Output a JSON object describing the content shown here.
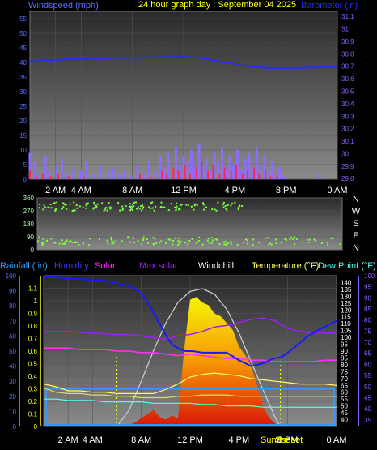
{
  "colors": {
    "windspeed": "#5a6cff",
    "barometer": "#2a2aff",
    "gust": "#8e6cff",
    "wind_avg": "#ff2a4a",
    "humidity": "#1a1aff",
    "solar": "#ff30ff",
    "max_solar": "#a020f0",
    "windchill": "#ffffff",
    "temperature": "#ffff66",
    "dew_point": "#55ffee",
    "rainfall": "#3399ff",
    "left_axis": "#5a6cff",
    "right_axis": "#8a5cff",
    "title": "#ffff00"
  },
  "chart_data": [
    {
      "type": "line",
      "title": "24 hour graph day : September 04 2025",
      "legend_left": "Windspeed (mph)",
      "legend_right": "Barometer (in)",
      "x_ticks": [
        "2 AM",
        "4 AM",
        "8 AM",
        "12 PM",
        "4 PM",
        "8 PM",
        "0 AM"
      ],
      "x_tick_hours": [
        2,
        4,
        8,
        12,
        16,
        20,
        24
      ],
      "xlim": [
        0,
        24
      ],
      "y_left_ticks": [
        "0",
        "5",
        "10",
        "15",
        "20",
        "25",
        "30",
        "35",
        "40",
        "45",
        "50",
        "55"
      ],
      "y_left_lim": [
        0,
        57.5
      ],
      "y_right_ticks": [
        "29.8",
        "29.9",
        "30",
        "30.1",
        "30.2",
        "30.3",
        "30.4",
        "30.5",
        "30.6",
        "30.7",
        "30.8",
        "30.9",
        "31",
        "31.1"
      ],
      "y_right_lim": [
        29.795,
        31.14
      ],
      "series": [
        {
          "name": "Barometer",
          "axis": "right",
          "x": [
            0,
            0.5,
            1,
            2,
            3,
            4,
            5,
            6,
            7,
            8,
            9,
            10,
            11,
            12,
            13,
            14,
            15,
            16,
            17,
            18,
            19,
            20,
            21,
            22,
            23,
            24
          ],
          "y": [
            30.74,
            30.74,
            30.745,
            30.752,
            30.756,
            30.758,
            30.76,
            30.763,
            30.766,
            30.768,
            30.77,
            30.772,
            30.775,
            30.776,
            30.77,
            30.755,
            30.735,
            30.72,
            30.7,
            30.69,
            30.685,
            30.685,
            30.688,
            30.69,
            30.693,
            30.692
          ]
        },
        {
          "name": "Windspeed",
          "axis": "left",
          "x": [
            0,
            0.35,
            0.7,
            1.2,
            1.5,
            2.1,
            2.5,
            2.9,
            3.4,
            4.0,
            4.4,
            5.0,
            5.5,
            6.1,
            6.5,
            7.0,
            7.4,
            7.9,
            8.4,
            8.9,
            9.3,
            9.8,
            10.2,
            10.5,
            10.8,
            11.1,
            11.4,
            11.7,
            12.0,
            12.3,
            12.6,
            12.9,
            13.2,
            13.5,
            13.8,
            14.1,
            14.4,
            14.7,
            15.0,
            15.3,
            15.6,
            15.9,
            16.2,
            16.5,
            16.8,
            17.1,
            17.4,
            17.7,
            18.0,
            18.3,
            18.6,
            18.9,
            19.2,
            19.5,
            19.8,
            22.6
          ],
          "y": [
            9,
            6,
            2,
            8,
            3,
            5,
            7,
            2,
            4,
            3,
            6,
            2,
            5,
            3,
            4,
            2,
            3,
            1,
            5,
            2,
            6,
            3,
            8,
            4,
            9,
            3,
            11,
            5,
            8,
            6,
            10,
            4,
            12,
            5,
            7,
            3,
            9,
            6,
            11,
            4,
            8,
            5,
            10,
            3,
            7,
            9,
            4,
            11,
            5,
            8,
            3,
            6,
            2,
            4,
            1,
            2
          ]
        },
        {
          "name": "Wind average",
          "axis": "left",
          "x": [
            0,
            0.5,
            1.0,
            1.6,
            2.2,
            3.0,
            4.2,
            8.6,
            9.4,
            10.3,
            10.7,
            11.2,
            11.6,
            12.1,
            12.5,
            13.0,
            13.4,
            13.9,
            14.3,
            14.8,
            15.2,
            15.7,
            16.1,
            16.6,
            17.0,
            17.5,
            17.9,
            18.4,
            18.8,
            19.3
          ],
          "y": [
            3,
            1,
            2,
            1,
            2,
            1,
            1,
            2,
            1,
            3,
            2,
            4,
            3,
            5,
            2,
            4,
            6,
            3,
            5,
            2,
            4,
            3,
            5,
            2,
            3,
            4,
            2,
            3,
            1,
            2
          ]
        }
      ]
    },
    {
      "type": "scatter",
      "title": "Wind direction",
      "y_labels": [
        "360",
        "270",
        "180",
        "90",
        "0"
      ],
      "y_lim": [
        0,
        360
      ],
      "compass": [
        "N",
        "W",
        "S",
        "E",
        "N"
      ],
      "xlim": [
        0,
        24
      ],
      "clusters": [
        {
          "x_from": 0,
          "x_to": 16.5,
          "y_center": 300,
          "spread": 30
        },
        {
          "x_from": 0,
          "x_to": 24,
          "y_center": 60,
          "spread": 28
        }
      ]
    },
    {
      "type": "line",
      "legend": [
        "Rainfall (.in)",
        "Humidity",
        "Solar",
        "Max solar",
        "Windchill",
        "Temperature (°F)",
        "Dew Point (°F)"
      ],
      "sun_labels": [
        "Sunrise",
        "Sunset"
      ],
      "x_ticks": [
        "2 AM",
        "4 AM",
        "8 AM",
        "12 PM",
        "4 PM",
        "8 PM",
        "0 AM"
      ],
      "x_tick_hours": [
        2,
        4,
        8,
        12,
        16,
        20,
        24
      ],
      "xlim": [
        0,
        24
      ],
      "y_rain_ticks": [
        "0",
        "0.1",
        "0.2",
        "0.3",
        "0.4",
        "0.5",
        "0.6",
        "0.7",
        "0.8",
        "0.9",
        "1",
        "1.1"
      ],
      "y_rain_lim": [
        0,
        1.2
      ],
      "y_pct_ticks": [
        "0",
        "10",
        "20",
        "30",
        "40",
        "50",
        "60",
        "70",
        "80",
        "90",
        "100"
      ],
      "y_pct_lim": [
        0,
        100
      ],
      "y_temp_ticks": [
        "40",
        "45",
        "50",
        "55",
        "60",
        "65",
        "70",
        "75",
        "80",
        "85",
        "90",
        "95",
        "100",
        "105",
        "110",
        "115",
        "120",
        "125",
        "130",
        "135",
        "140"
      ],
      "y_temp_lim": [
        35,
        145
      ],
      "y_dew_ticks": [
        "35",
        "40",
        "45",
        "50",
        "55",
        "60",
        "65",
        "70",
        "75",
        "80",
        "85",
        "90",
        "95",
        "100"
      ],
      "y_dew_lim": [
        32,
        100
      ],
      "sunrise_hour": 6.0,
      "sunset_hour": 19.4,
      "series": [
        {
          "name": "Humidity",
          "unit": "%",
          "x": [
            0,
            1,
            2,
            3,
            4,
            5,
            6,
            7,
            7.8,
            8.5,
            9.5,
            10.2,
            10.6,
            11.0,
            11.6,
            12.2,
            13.0,
            14.0,
            15.0,
            16.0,
            17.0,
            18.0,
            18.8,
            19.5,
            20.5,
            21.5,
            22.5,
            23.5,
            24
          ],
          "y": [
            99,
            99,
            98,
            98,
            97,
            97,
            95,
            93,
            90,
            83,
            68,
            58,
            54,
            52,
            50,
            50,
            49,
            49,
            49,
            44,
            40,
            42,
            45,
            46,
            52,
            59,
            64,
            68,
            70
          ]
        },
        {
          "name": "Max solar",
          "unit": "%",
          "x": [
            0,
            2,
            4,
            6,
            7,
            8,
            9,
            10,
            11,
            12,
            13,
            14,
            15,
            16,
            17,
            18,
            19,
            20,
            21,
            22,
            23,
            24
          ],
          "y": [
            63,
            63,
            62,
            61,
            61,
            60,
            59,
            58,
            60,
            61,
            63,
            66,
            67,
            69,
            71,
            72,
            70,
            65,
            63,
            62,
            62,
            62
          ]
        },
        {
          "name": "Solar",
          "unit": "%",
          "x": [
            0,
            1,
            2,
            3,
            4,
            5,
            6,
            7,
            8,
            9,
            10,
            11,
            12,
            13,
            14,
            15,
            16,
            17,
            18,
            19,
            20,
            21,
            22,
            23,
            24
          ],
          "y": [
            52,
            52,
            52,
            51,
            51,
            51,
            50,
            50,
            49,
            49,
            48,
            47,
            48,
            47,
            46,
            45,
            45,
            44,
            44,
            43,
            43,
            43,
            43,
            44,
            44
          ]
        },
        {
          "name": "Temperature",
          "unit": "°F",
          "x": [
            0,
            1,
            2,
            3,
            4,
            5,
            6,
            7,
            8,
            9,
            10,
            11,
            12,
            13,
            14,
            15,
            16,
            17,
            18,
            19,
            20,
            21,
            22,
            23,
            24
          ],
          "y": [
            66,
            64,
            61,
            61,
            60,
            60,
            59,
            59,
            59,
            59,
            62,
            66,
            71,
            73,
            74,
            73,
            72,
            70,
            69,
            68,
            67,
            66,
            66,
            66,
            65
          ]
        },
        {
          "name": "Windchill",
          "unit": "°F",
          "x": [
            0,
            1,
            2,
            3,
            4,
            5,
            6,
            7,
            8,
            9,
            10,
            11,
            12,
            13,
            14,
            15,
            16,
            17,
            18,
            19,
            20,
            21,
            22,
            23,
            24
          ],
          "y": [
            63,
            60,
            59,
            59,
            58,
            58,
            57,
            57,
            56,
            56,
            56,
            57,
            57,
            58,
            58,
            58,
            57,
            57,
            57,
            57,
            57,
            57,
            57,
            57,
            57
          ]
        },
        {
          "name": "Dew Point",
          "unit": "°F",
          "x": [
            0,
            1,
            2,
            3,
            4,
            5,
            6,
            7,
            8,
            9,
            10,
            11,
            12,
            13,
            14,
            15,
            16,
            17,
            18,
            19,
            20,
            21,
            22,
            23,
            24
          ],
          "y": [
            55,
            55,
            54,
            54,
            54,
            53,
            53,
            53,
            53,
            52,
            52,
            52,
            52,
            51,
            51,
            50,
            50,
            50,
            49,
            49,
            49,
            49,
            49,
            49,
            49
          ]
        },
        {
          "name": "Max solar curve",
          "unit": "relative",
          "x": [
            6.0,
            7,
            8,
            9,
            10,
            11,
            12,
            13,
            14,
            15,
            16,
            17,
            18,
            19,
            19.4
          ],
          "y": [
            0,
            0.12,
            0.33,
            0.55,
            0.75,
            0.9,
            0.98,
            1.0,
            0.96,
            0.85,
            0.68,
            0.47,
            0.26,
            0.06,
            0
          ]
        },
        {
          "name": "Solar radiation",
          "unit": "relative",
          "x": [
            6.0,
            7,
            7.5,
            8,
            8.5,
            9,
            9.5,
            10,
            10.5,
            11,
            11.5,
            12,
            12.5,
            13,
            13.5,
            14,
            14.5,
            15,
            15.5,
            16,
            16.5,
            17,
            17.5,
            18,
            18.5,
            19,
            19.4
          ],
          "y": [
            0,
            0.01,
            0.03,
            0.06,
            0.09,
            0.12,
            0.07,
            0.05,
            0.08,
            0.06,
            0.55,
            0.92,
            0.94,
            0.9,
            0.88,
            0.82,
            0.8,
            0.75,
            0.7,
            0.58,
            0.52,
            0.44,
            0.3,
            0.14,
            0.06,
            0.02,
            0
          ]
        },
        {
          "name": "Rainfall",
          "unit": "in",
          "x": [
            0,
            24
          ],
          "y": [
            0.3,
            0.3
          ]
        }
      ]
    }
  ]
}
